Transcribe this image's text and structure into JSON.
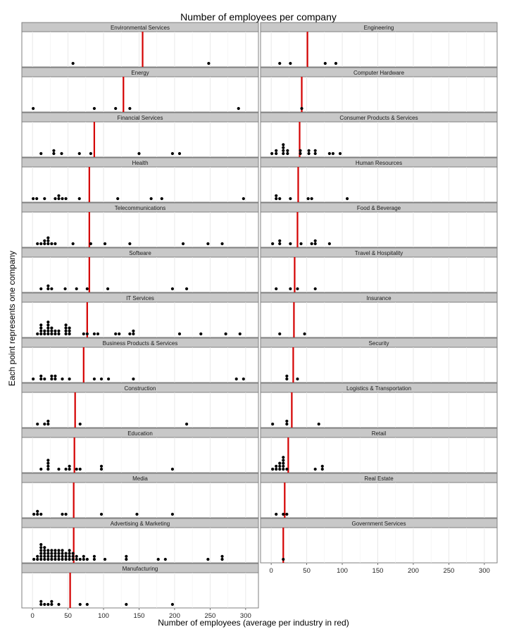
{
  "chart_data": {
    "type": "scatter",
    "subtype": "faceted dot plot",
    "title": "Number of employees per company",
    "xlabel": "Number of employees (average per industry in red)",
    "ylabel": "Each point represents one company",
    "xlim": [
      -15,
      318
    ],
    "x_ticks": [
      0,
      50,
      100,
      150,
      200,
      250,
      300
    ],
    "grid": true,
    "colors": {
      "points": "#000000",
      "mean_line": "#d40000",
      "strip": "#c8c8c8",
      "panel_border": "#7f7f7f",
      "grid": "#e6e6e6"
    },
    "facets": [
      {
        "name": "Environmental Services",
        "mean": 155,
        "points": [
          [
            57,
            1
          ],
          [
            248,
            1
          ]
        ]
      },
      {
        "name": "Engineering",
        "mean": 51,
        "points": [
          [
            12,
            1
          ],
          [
            27,
            1
          ],
          [
            76,
            1
          ],
          [
            91,
            1
          ]
        ]
      },
      {
        "name": "Energy",
        "mean": 128,
        "points": [
          [
            1,
            1
          ],
          [
            87,
            1
          ],
          [
            117,
            1
          ],
          [
            137,
            1
          ],
          [
            290,
            1
          ]
        ]
      },
      {
        "name": "Computer Hardware",
        "mean": 43,
        "points": [
          [
            43,
            1
          ]
        ]
      },
      {
        "name": "Financial Services",
        "mean": 87,
        "points": [
          [
            12,
            1
          ],
          [
            30,
            2
          ],
          [
            41,
            1
          ],
          [
            66,
            1
          ],
          [
            82,
            1
          ],
          [
            150,
            1
          ],
          [
            197,
            1
          ],
          [
            207,
            1
          ]
        ]
      },
      {
        "name": "Consumer Products & Services",
        "mean": 40,
        "points": [
          [
            1,
            1
          ],
          [
            7,
            2
          ],
          [
            17,
            4
          ],
          [
            23,
            2
          ],
          [
            41,
            2
          ],
          [
            53,
            2
          ],
          [
            62,
            2
          ],
          [
            82,
            1
          ],
          [
            87,
            1
          ],
          [
            97,
            1
          ]
        ]
      },
      {
        "name": "Health",
        "mean": 80,
        "points": [
          [
            1,
            1
          ],
          [
            6,
            1
          ],
          [
            17,
            1
          ],
          [
            32,
            1
          ],
          [
            37,
            2
          ],
          [
            42,
            1
          ],
          [
            47,
            1
          ],
          [
            66,
            1
          ],
          [
            120,
            1
          ],
          [
            167,
            1
          ],
          [
            182,
            1
          ],
          [
            297,
            1
          ]
        ]
      },
      {
        "name": "Human Resources",
        "mean": 38,
        "points": [
          [
            7,
            2
          ],
          [
            12,
            1
          ],
          [
            27,
            1
          ],
          [
            52,
            1
          ],
          [
            57,
            1
          ],
          [
            107,
            1
          ]
        ]
      },
      {
        "name": "Telecommunications",
        "mean": 80,
        "points": [
          [
            7,
            1
          ],
          [
            12,
            1
          ],
          [
            17,
            2
          ],
          [
            22,
            3
          ],
          [
            27,
            1
          ],
          [
            32,
            1
          ],
          [
            57,
            1
          ],
          [
            82,
            1
          ],
          [
            102,
            1
          ],
          [
            137,
            1
          ],
          [
            212,
            1
          ],
          [
            247,
            1
          ],
          [
            267,
            1
          ]
        ]
      },
      {
        "name": "Food & Beverage",
        "mean": 37,
        "points": [
          [
            2,
            1
          ],
          [
            12,
            2
          ],
          [
            27,
            1
          ],
          [
            42,
            1
          ],
          [
            57,
            1
          ],
          [
            62,
            2
          ],
          [
            82,
            1
          ]
        ]
      },
      {
        "name": "Software",
        "mean": 80,
        "points": [
          [
            12,
            1
          ],
          [
            22,
            2
          ],
          [
            27,
            1
          ],
          [
            46,
            1
          ],
          [
            62,
            1
          ],
          [
            77,
            1
          ],
          [
            106,
            1
          ],
          [
            197,
            1
          ],
          [
            217,
            1
          ]
        ]
      },
      {
        "name": "Travel & Hospitality",
        "mean": 33,
        "points": [
          [
            7,
            1
          ],
          [
            27,
            1
          ],
          [
            37,
            1
          ],
          [
            62,
            1
          ]
        ]
      },
      {
        "name": "IT Services",
        "mean": 77,
        "points": [
          [
            7,
            1
          ],
          [
            12,
            4
          ],
          [
            17,
            2
          ],
          [
            22,
            5
          ],
          [
            27,
            3
          ],
          [
            32,
            2
          ],
          [
            37,
            2
          ],
          [
            47,
            4
          ],
          [
            52,
            3
          ],
          [
            72,
            1
          ],
          [
            77,
            1
          ],
          [
            87,
            1
          ],
          [
            92,
            1
          ],
          [
            117,
            1
          ],
          [
            122,
            1
          ],
          [
            137,
            1
          ],
          [
            142,
            2
          ],
          [
            207,
            1
          ],
          [
            237,
            1
          ],
          [
            272,
            1
          ],
          [
            292,
            1
          ]
        ]
      },
      {
        "name": "Insurance",
        "mean": 32,
        "points": [
          [
            12,
            1
          ],
          [
            47,
            1
          ]
        ]
      },
      {
        "name": "Business Products & Services",
        "mean": 72,
        "points": [
          [
            1,
            1
          ],
          [
            12,
            2
          ],
          [
            17,
            1
          ],
          [
            27,
            2
          ],
          [
            32,
            2
          ],
          [
            42,
            1
          ],
          [
            52,
            1
          ],
          [
            87,
            1
          ],
          [
            97,
            1
          ],
          [
            107,
            1
          ],
          [
            142,
            1
          ],
          [
            287,
            1
          ],
          [
            297,
            1
          ]
        ]
      },
      {
        "name": "Security",
        "mean": 31,
        "points": [
          [
            22,
            2
          ],
          [
            37,
            1
          ]
        ]
      },
      {
        "name": "Construction",
        "mean": 60,
        "points": [
          [
            7,
            1
          ],
          [
            17,
            1
          ],
          [
            22,
            2
          ],
          [
            67,
            1
          ],
          [
            217,
            1
          ]
        ]
      },
      {
        "name": "Logistics & Transportation",
        "mean": 29,
        "points": [
          [
            2,
            1
          ],
          [
            22,
            2
          ],
          [
            67,
            1
          ]
        ]
      },
      {
        "name": "Education",
        "mean": 59,
        "points": [
          [
            12,
            1
          ],
          [
            22,
            4
          ],
          [
            37,
            1
          ],
          [
            47,
            1
          ],
          [
            52,
            2
          ],
          [
            62,
            1
          ],
          [
            67,
            1
          ],
          [
            97,
            2
          ],
          [
            197,
            1
          ]
        ]
      },
      {
        "name": "Retail",
        "mean": 24,
        "points": [
          [
            2,
            1
          ],
          [
            7,
            2
          ],
          [
            12,
            3
          ],
          [
            17,
            5
          ],
          [
            22,
            1
          ],
          [
            62,
            1
          ],
          [
            72,
            2
          ]
        ]
      },
      {
        "name": "Media",
        "mean": 58,
        "points": [
          [
            2,
            1
          ],
          [
            7,
            2
          ],
          [
            12,
            1
          ],
          [
            42,
            1
          ],
          [
            47,
            1
          ],
          [
            97,
            1
          ],
          [
            147,
            1
          ],
          [
            197,
            1
          ]
        ]
      },
      {
        "name": "Real Estate",
        "mean": 19,
        "points": [
          [
            7,
            1
          ],
          [
            17,
            1
          ],
          [
            22,
            1
          ]
        ]
      },
      {
        "name": "Advertising & Marketing",
        "mean": 58,
        "points": [
          [
            2,
            1
          ],
          [
            7,
            2
          ],
          [
            12,
            6
          ],
          [
            17,
            5
          ],
          [
            22,
            4
          ],
          [
            27,
            4
          ],
          [
            32,
            4
          ],
          [
            37,
            4
          ],
          [
            42,
            4
          ],
          [
            47,
            3
          ],
          [
            52,
            4
          ],
          [
            57,
            3
          ],
          [
            62,
            2
          ],
          [
            67,
            1
          ],
          [
            72,
            2
          ],
          [
            77,
            1
          ],
          [
            87,
            2
          ],
          [
            102,
            1
          ],
          [
            132,
            2
          ],
          [
            177,
            1
          ],
          [
            187,
            1
          ],
          [
            247,
            1
          ],
          [
            267,
            2
          ]
        ]
      },
      {
        "name": "Government Services",
        "mean": 17,
        "points": [
          [
            17,
            1
          ]
        ]
      },
      {
        "name": "Manufacturing",
        "mean": 53,
        "points": [
          [
            12,
            2
          ],
          [
            17,
            1
          ],
          [
            22,
            1
          ],
          [
            27,
            2
          ],
          [
            37,
            1
          ],
          [
            67,
            1
          ],
          [
            77,
            1
          ],
          [
            132,
            1
          ],
          [
            197,
            1
          ]
        ]
      }
    ]
  }
}
